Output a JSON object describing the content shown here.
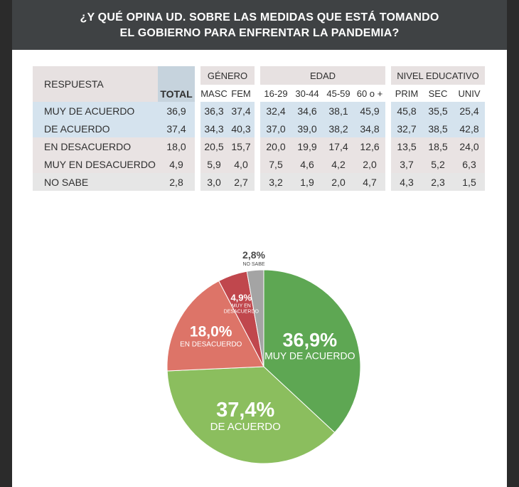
{
  "header": {
    "line1": "¿Y QUÉ OPINA UD. SOBRE LAS MEDIDAS QUE ESTÁ TOMANDO",
    "line2": "EL GOBIERNO PARA ENFRENTAR LA PANDEMIA?"
  },
  "table": {
    "respuesta_label": "RESPUESTA",
    "total_label": "TOTAL",
    "groups": {
      "genero": "GÉNERO",
      "edad": "EDAD",
      "nivel": "NIVEL EDUCATIVO"
    },
    "subheaders": [
      "MASC",
      "FEM",
      "16-29",
      "30-44",
      "45-59",
      "60 o +",
      "PRIM",
      "SEC",
      "UNIV"
    ],
    "rows": [
      {
        "label": "MUY DE ACUERDO",
        "values": [
          "36,9",
          "36,3",
          "37,4",
          "32,4",
          "34,6",
          "38,1",
          "45,9",
          "45,8",
          "35,5",
          "25,4"
        ]
      },
      {
        "label": "DE ACUERDO",
        "values": [
          "37,4",
          "34,3",
          "40,3",
          "37,0",
          "39,0",
          "38,2",
          "34,8",
          "32,7",
          "38,5",
          "42,8"
        ]
      },
      {
        "label": "EN DESACUERDO",
        "values": [
          "18,0",
          "20,5",
          "15,7",
          "20,0",
          "19,9",
          "17,4",
          "12,6",
          "13,5",
          "18,5",
          "24,0"
        ]
      },
      {
        "label": "MUY EN DESACUERDO",
        "values": [
          "4,9",
          "5,9",
          "4,0",
          "7,5",
          "4,6",
          "4,2",
          "2,0",
          "3,7",
          "5,2",
          "6,3"
        ]
      },
      {
        "label": "NO SABE",
        "values": [
          "2,8",
          "3,0",
          "2,7",
          "3,2",
          "1,9",
          "2,0",
          "4,7",
          "4,3",
          "2,3",
          "1,5"
        ]
      }
    ]
  },
  "chart_data": {
    "type": "pie",
    "slices": [
      {
        "label": "MUY DE ACUERDO",
        "pct_text": "36,9%",
        "value": 36.9,
        "color": "#5ea753"
      },
      {
        "label": "DE ACUERDO",
        "pct_text": "37,4%",
        "value": 37.4,
        "color": "#8bbe5e"
      },
      {
        "label": "EN DESACUERDO",
        "pct_text": "18,0%",
        "value": 18.0,
        "color": "#dd7468"
      },
      {
        "label": "MUY EN DESACUERDO",
        "pct_text": "4,9%",
        "value": 4.9,
        "color": "#c0474d"
      },
      {
        "label": "NO SABE",
        "pct_text": "2,8%",
        "value": 2.8,
        "color": "#a4a4a4"
      }
    ]
  },
  "colors": {
    "header_bg": "#3f4244",
    "row_blue": "#d5e3ee",
    "row_pink": "#e9e3e3",
    "row_gray": "#e6e6e6",
    "no_sabe_text": "#4a4a4a"
  }
}
